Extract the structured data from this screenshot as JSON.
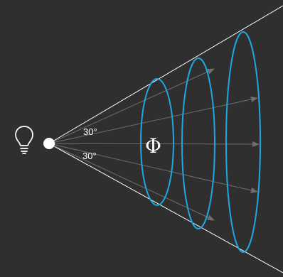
{
  "diagram": {
    "upper_angle_label": "30°",
    "lower_angle_label": "30°",
    "flux_symbol": "Φ",
    "light_icon": "lightbulb-icon",
    "colors": {
      "background": "#2f2f2f",
      "cone_edge": "#ffffff",
      "ray": "#6f6f6f",
      "ellipse": "#1fa7e0",
      "source": "#ffffff"
    }
  }
}
